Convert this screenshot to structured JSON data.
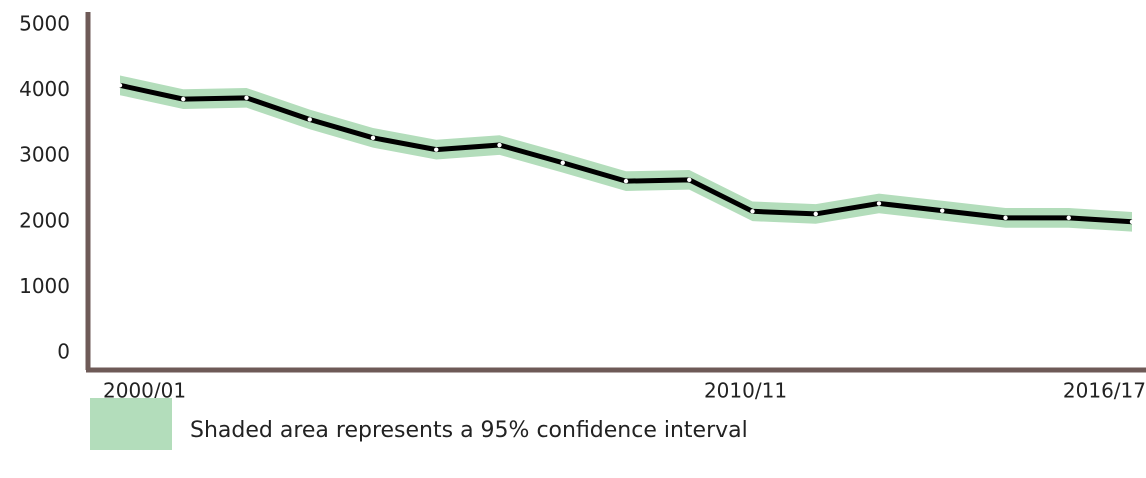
{
  "chart_data": {
    "type": "line",
    "categories": [
      "2000/01",
      null,
      null,
      null,
      null,
      null,
      null,
      null,
      null,
      null,
      "2010/11",
      null,
      null,
      null,
      null,
      null,
      "2016/17"
    ],
    "series": [
      {
        "color": "#000000",
        "values": [
          4080,
          3870,
          3890,
          3560,
          3280,
          3100,
          3170,
          2900,
          2620,
          2640,
          2160,
          2120,
          2280,
          2170,
          2060,
          2060,
          2000
        ]
      }
    ],
    "ci_lower": [
      3930,
      3720,
      3740,
      3410,
      3130,
      2950,
      3020,
      2750,
      2470,
      2490,
      2010,
      1970,
      2130,
      2020,
      1910,
      1910,
      1850
    ],
    "ci_upper": [
      4230,
      4020,
      4040,
      3710,
      3430,
      3250,
      3320,
      3050,
      2770,
      2790,
      2310,
      2270,
      2430,
      2320,
      2210,
      2210,
      2150
    ],
    "ci_color": "#b3ddbb",
    "axis_color": "#6e5a57",
    "legend": "Shaded area represents a 95% confidence interval",
    "ylim": [
      0,
      5000
    ],
    "yticks": [
      0,
      1000,
      2000,
      3000,
      4000,
      5000
    ]
  }
}
